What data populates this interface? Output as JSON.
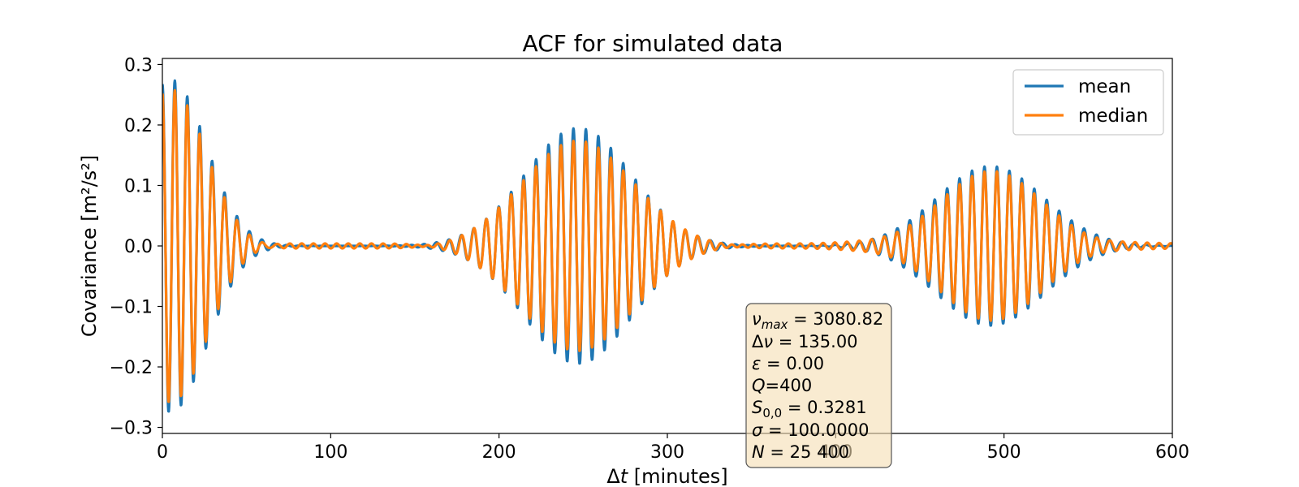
{
  "chart_data": {
    "type": "line",
    "title": "ACF for simulated data",
    "xlabel_main": "Δ",
    "xlabel_var": "t",
    "xlabel_unit": "[minutes]",
    "ylabel": "Covariance [m²/s²]",
    "xlim": [
      0,
      600
    ],
    "ylim": [
      -0.31,
      0.31
    ],
    "xticks": [
      0,
      100,
      200,
      300,
      400,
      500,
      600
    ],
    "yticks": [
      -0.3,
      -0.2,
      -0.1,
      0.0,
      0.1,
      0.2,
      0.3
    ],
    "ytick_labels": [
      "−0.3",
      "−0.2",
      "−0.1",
      "0.0",
      "0.1",
      "0.2",
      "0.3"
    ],
    "oscillation_period_minutes": 7.4,
    "envelope_peaks": [
      {
        "center": 5,
        "width": 30,
        "mean_amp": 0.275,
        "median_amp": 0.255
      },
      {
        "center": 247,
        "width": 45,
        "mean_amp": 0.195,
        "median_amp": 0.178
      },
      {
        "center": 492,
        "width": 45,
        "mean_amp": 0.132,
        "median_amp": 0.12
      }
    ],
    "series": [
      {
        "name": "mean",
        "color": "#1f77b4"
      },
      {
        "name": "median",
        "color": "#ff7f0e"
      }
    ],
    "legend": {
      "position": "top-right",
      "entries": [
        "mean",
        "median"
      ]
    },
    "annotation": {
      "nu_max": "3080.82",
      "delta_nu": "135.00",
      "epsilon": "0.00",
      "Q": "400",
      "S00": "0.3281",
      "sigma": "100.0000",
      "N": "25 400",
      "box_color": "#f5deb3"
    }
  }
}
